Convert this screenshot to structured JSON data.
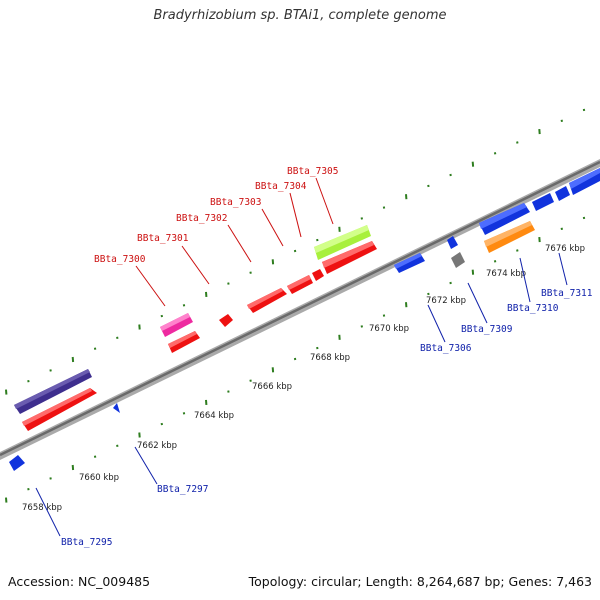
{
  "header": {
    "title": "Bradyrhizobium sp. BTAi1, complete genome"
  },
  "footer": {
    "accession": "Accession: NC_009485",
    "summary": "Topology: circular; Length: 8,264,687 bp; Genes: 7,463"
  },
  "colors": {
    "backbone": "#888888",
    "ticks": "#2e7d1f",
    "red": "#ee1111",
    "blue": "#1133dd",
    "navy": "#3e2e8e",
    "magenta": "#ee2aa0",
    "lime": "#a8f03c",
    "orange": "#ff8a10",
    "gray": "#777777",
    "upper_label": "#cc1111",
    "lower_label": "#1122aa"
  },
  "map": {
    "kbp_labels": [
      "7658 kbp",
      "7660 kbp",
      "7662 kbp",
      "7664 kbp",
      "7666 kbp",
      "7668 kbp",
      "7670 kbp",
      "7672 kbp",
      "7674 kbp",
      "7676 kbp"
    ],
    "upper_genes": [
      "BBta_7300",
      "BBta_7301",
      "BBta_7302",
      "BBta_7303",
      "BBta_7304",
      "BBta_7305"
    ],
    "lower_genes": [
      "BBta_7295",
      "BBta_7297",
      "BBta_7306",
      "BBta_7309",
      "BBta_7310",
      "BBta_7311"
    ]
  }
}
